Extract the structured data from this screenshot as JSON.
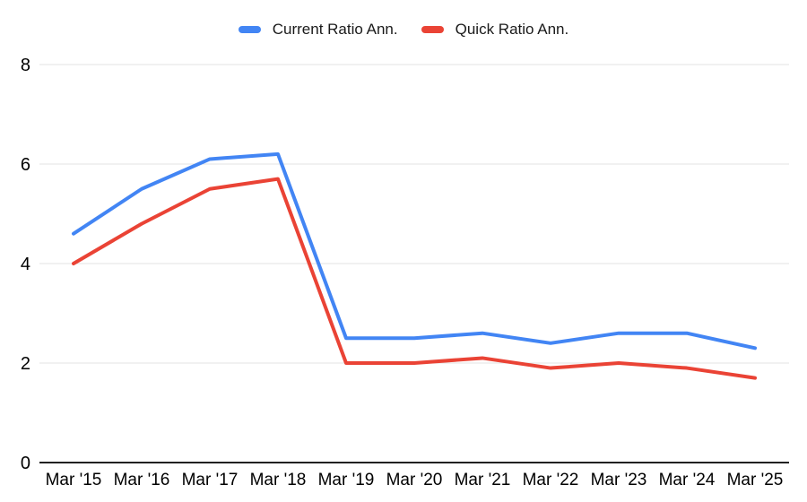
{
  "chart_data": {
    "type": "line",
    "title": "",
    "xlabel": "",
    "ylabel": "",
    "categories": [
      "Mar '15",
      "Mar '16",
      "Mar '17",
      "Mar '18",
      "Mar '19",
      "Mar '20",
      "Mar '21",
      "Mar '22",
      "Mar '23",
      "Mar '24",
      "Mar '25"
    ],
    "series": [
      {
        "name": "Current Ratio Ann.",
        "color": "#4285F4",
        "values": [
          4.6,
          5.5,
          6.1,
          6.2,
          2.5,
          2.5,
          2.6,
          2.4,
          2.6,
          2.6,
          2.3
        ]
      },
      {
        "name": "Quick Ratio Ann.",
        "color": "#EA4335",
        "values": [
          4.0,
          4.8,
          5.5,
          5.7,
          2.0,
          2.0,
          2.1,
          1.9,
          2.0,
          1.9,
          1.7
        ]
      }
    ],
    "ylim": [
      0,
      8
    ],
    "yticks": [
      0,
      2,
      4,
      6,
      8
    ],
    "grid": true,
    "legend_position": "top",
    "background": "#ffffff"
  }
}
